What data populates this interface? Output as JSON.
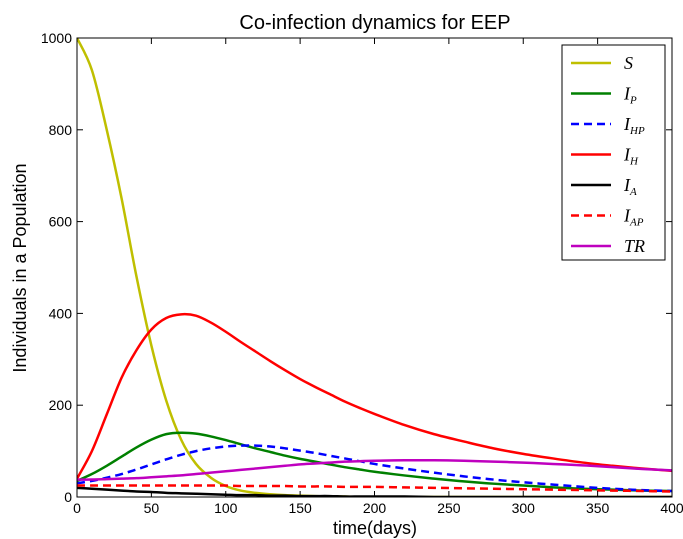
{
  "chart_data": {
    "type": "line",
    "title": "Co-infection dynamics for EEP",
    "xlabel": "time(days)",
    "ylabel": "Individuals in a Population",
    "xlim": [
      0,
      400
    ],
    "ylim": [
      0,
      1000
    ],
    "x_ticks": [
      "0",
      "50",
      "100",
      "150",
      "200",
      "250",
      "300",
      "350",
      "400"
    ],
    "y_ticks": [
      "0",
      "200",
      "400",
      "600",
      "800",
      "1000"
    ],
    "legend_position": "top-right",
    "grid": false,
    "x": [
      0,
      10,
      20,
      30,
      40,
      50,
      60,
      70,
      80,
      90,
      100,
      110,
      120,
      130,
      140,
      150,
      160,
      170,
      180,
      190,
      200,
      220,
      240,
      260,
      280,
      300,
      320,
      340,
      360,
      380,
      400
    ],
    "series": [
      {
        "name": "S",
        "main": "S",
        "sub": "",
        "color": "#bfbf00",
        "dash": "solid",
        "values": [
          1000,
          930,
          800,
          650,
          480,
          330,
          210,
          125,
          72,
          42,
          24,
          14,
          9,
          6,
          4,
          3,
          2,
          1,
          1,
          0,
          0,
          0,
          0,
          0,
          0,
          0,
          0,
          0,
          0,
          0,
          0
        ]
      },
      {
        "name": "I_P",
        "main": "I",
        "sub": "P",
        "color": "#008000",
        "dash": "solid",
        "values": [
          35,
          50,
          68,
          88,
          108,
          125,
          137,
          140,
          138,
          132,
          124,
          115,
          106,
          98,
          90,
          83,
          77,
          71,
          65,
          60,
          55,
          47,
          40,
          34,
          29,
          25,
          21,
          18,
          16,
          14,
          13
        ]
      },
      {
        "name": "I_HP",
        "main": "I",
        "sub": "HP",
        "color": "#0000ff",
        "dash": "dashed",
        "values": [
          30,
          35,
          42,
          50,
          60,
          71,
          82,
          92,
          100,
          106,
          110,
          112,
          112,
          110,
          106,
          101,
          96,
          90,
          84,
          78,
          72,
          62,
          53,
          45,
          38,
          32,
          27,
          22,
          18,
          15,
          13
        ]
      },
      {
        "name": "I_H",
        "main": "I",
        "sub": "H",
        "color": "#ff0000",
        "dash": "solid",
        "values": [
          40,
          100,
          180,
          260,
          320,
          365,
          390,
          398,
          395,
          380,
          360,
          338,
          317,
          296,
          276,
          257,
          240,
          224,
          208,
          194,
          181,
          157,
          137,
          121,
          106,
          94,
          84,
          75,
          68,
          62,
          57
        ]
      },
      {
        "name": "I_A",
        "main": "I",
        "sub": "A",
        "color": "#000000",
        "dash": "solid",
        "values": [
          20,
          18,
          16,
          14,
          12,
          11,
          9,
          8,
          7,
          6,
          5,
          4,
          4,
          3,
          3,
          2,
          2,
          2,
          1,
          1,
          1,
          1,
          0,
          0,
          0,
          0,
          0,
          0,
          0,
          0,
          0
        ]
      },
      {
        "name": "I_AP",
        "main": "I",
        "sub": "AP",
        "color": "#ff0000",
        "dash": "dashed",
        "values": [
          25,
          25,
          25,
          25,
          25,
          25,
          25,
          25,
          25,
          25,
          25,
          24,
          24,
          24,
          24,
          23,
          23,
          23,
          22,
          22,
          22,
          21,
          20,
          19,
          18,
          17,
          16,
          15,
          14,
          13,
          12
        ]
      },
      {
        "name": "TR",
        "main": "TR",
        "sub": "",
        "color": "#bf00bf",
        "dash": "solid",
        "values": [
          38,
          38,
          39,
          40,
          41,
          43,
          45,
          47,
          50,
          53,
          56,
          59,
          62,
          65,
          68,
          71,
          73,
          75,
          77,
          78,
          79,
          80,
          80,
          79,
          77,
          75,
          72,
          69,
          65,
          61,
          58
        ]
      }
    ]
  }
}
